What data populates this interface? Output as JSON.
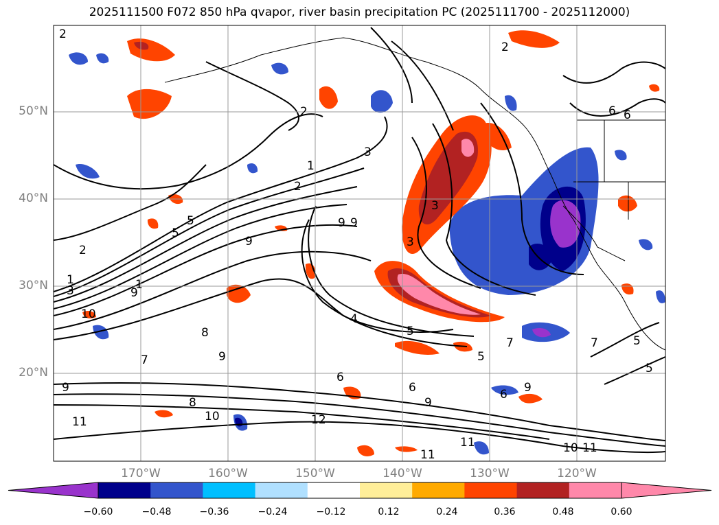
{
  "title": "2025111500 F072 850 hPa qvapor, river basin precipitation PC (2025111700 - 2025112000)",
  "lat_labels": [
    "50°N",
    "40°N",
    "30°N",
    "20°N"
  ],
  "lon_labels": [
    "170°W",
    "160°W",
    "150°W",
    "140°W",
    "130°W",
    "120°W"
  ],
  "colorbar": {
    "tick_labels": [
      "−0.60",
      "−0.48",
      "−0.36",
      "−0.24",
      "−0.12",
      "0.12",
      "0.24",
      "0.36",
      "0.48",
      "0.60"
    ],
    "colors": [
      "#9933cc",
      "#00008b",
      "#3355cc",
      "#00bfff",
      "#b0e0ff",
      "#ffffff",
      "#ffee99",
      "#ffaa00",
      "#ff4400",
      "#b22222",
      "#ff88aa",
      "#ff88aa"
    ]
  },
  "contour_labels": [
    "2",
    "2",
    "2",
    "1",
    "2",
    "5",
    "5",
    "2",
    "1",
    "3",
    "9",
    "9",
    "10",
    "3",
    "1",
    "9",
    "9",
    "9",
    "8",
    "7",
    "8",
    "9",
    "6",
    "10",
    "11",
    "12",
    "3",
    "3",
    "5",
    "4",
    "5",
    "6",
    "9",
    "6",
    "9",
    "11",
    "11",
    "10",
    "11",
    "7",
    "7",
    "5",
    "5",
    "6",
    "6"
  ]
}
